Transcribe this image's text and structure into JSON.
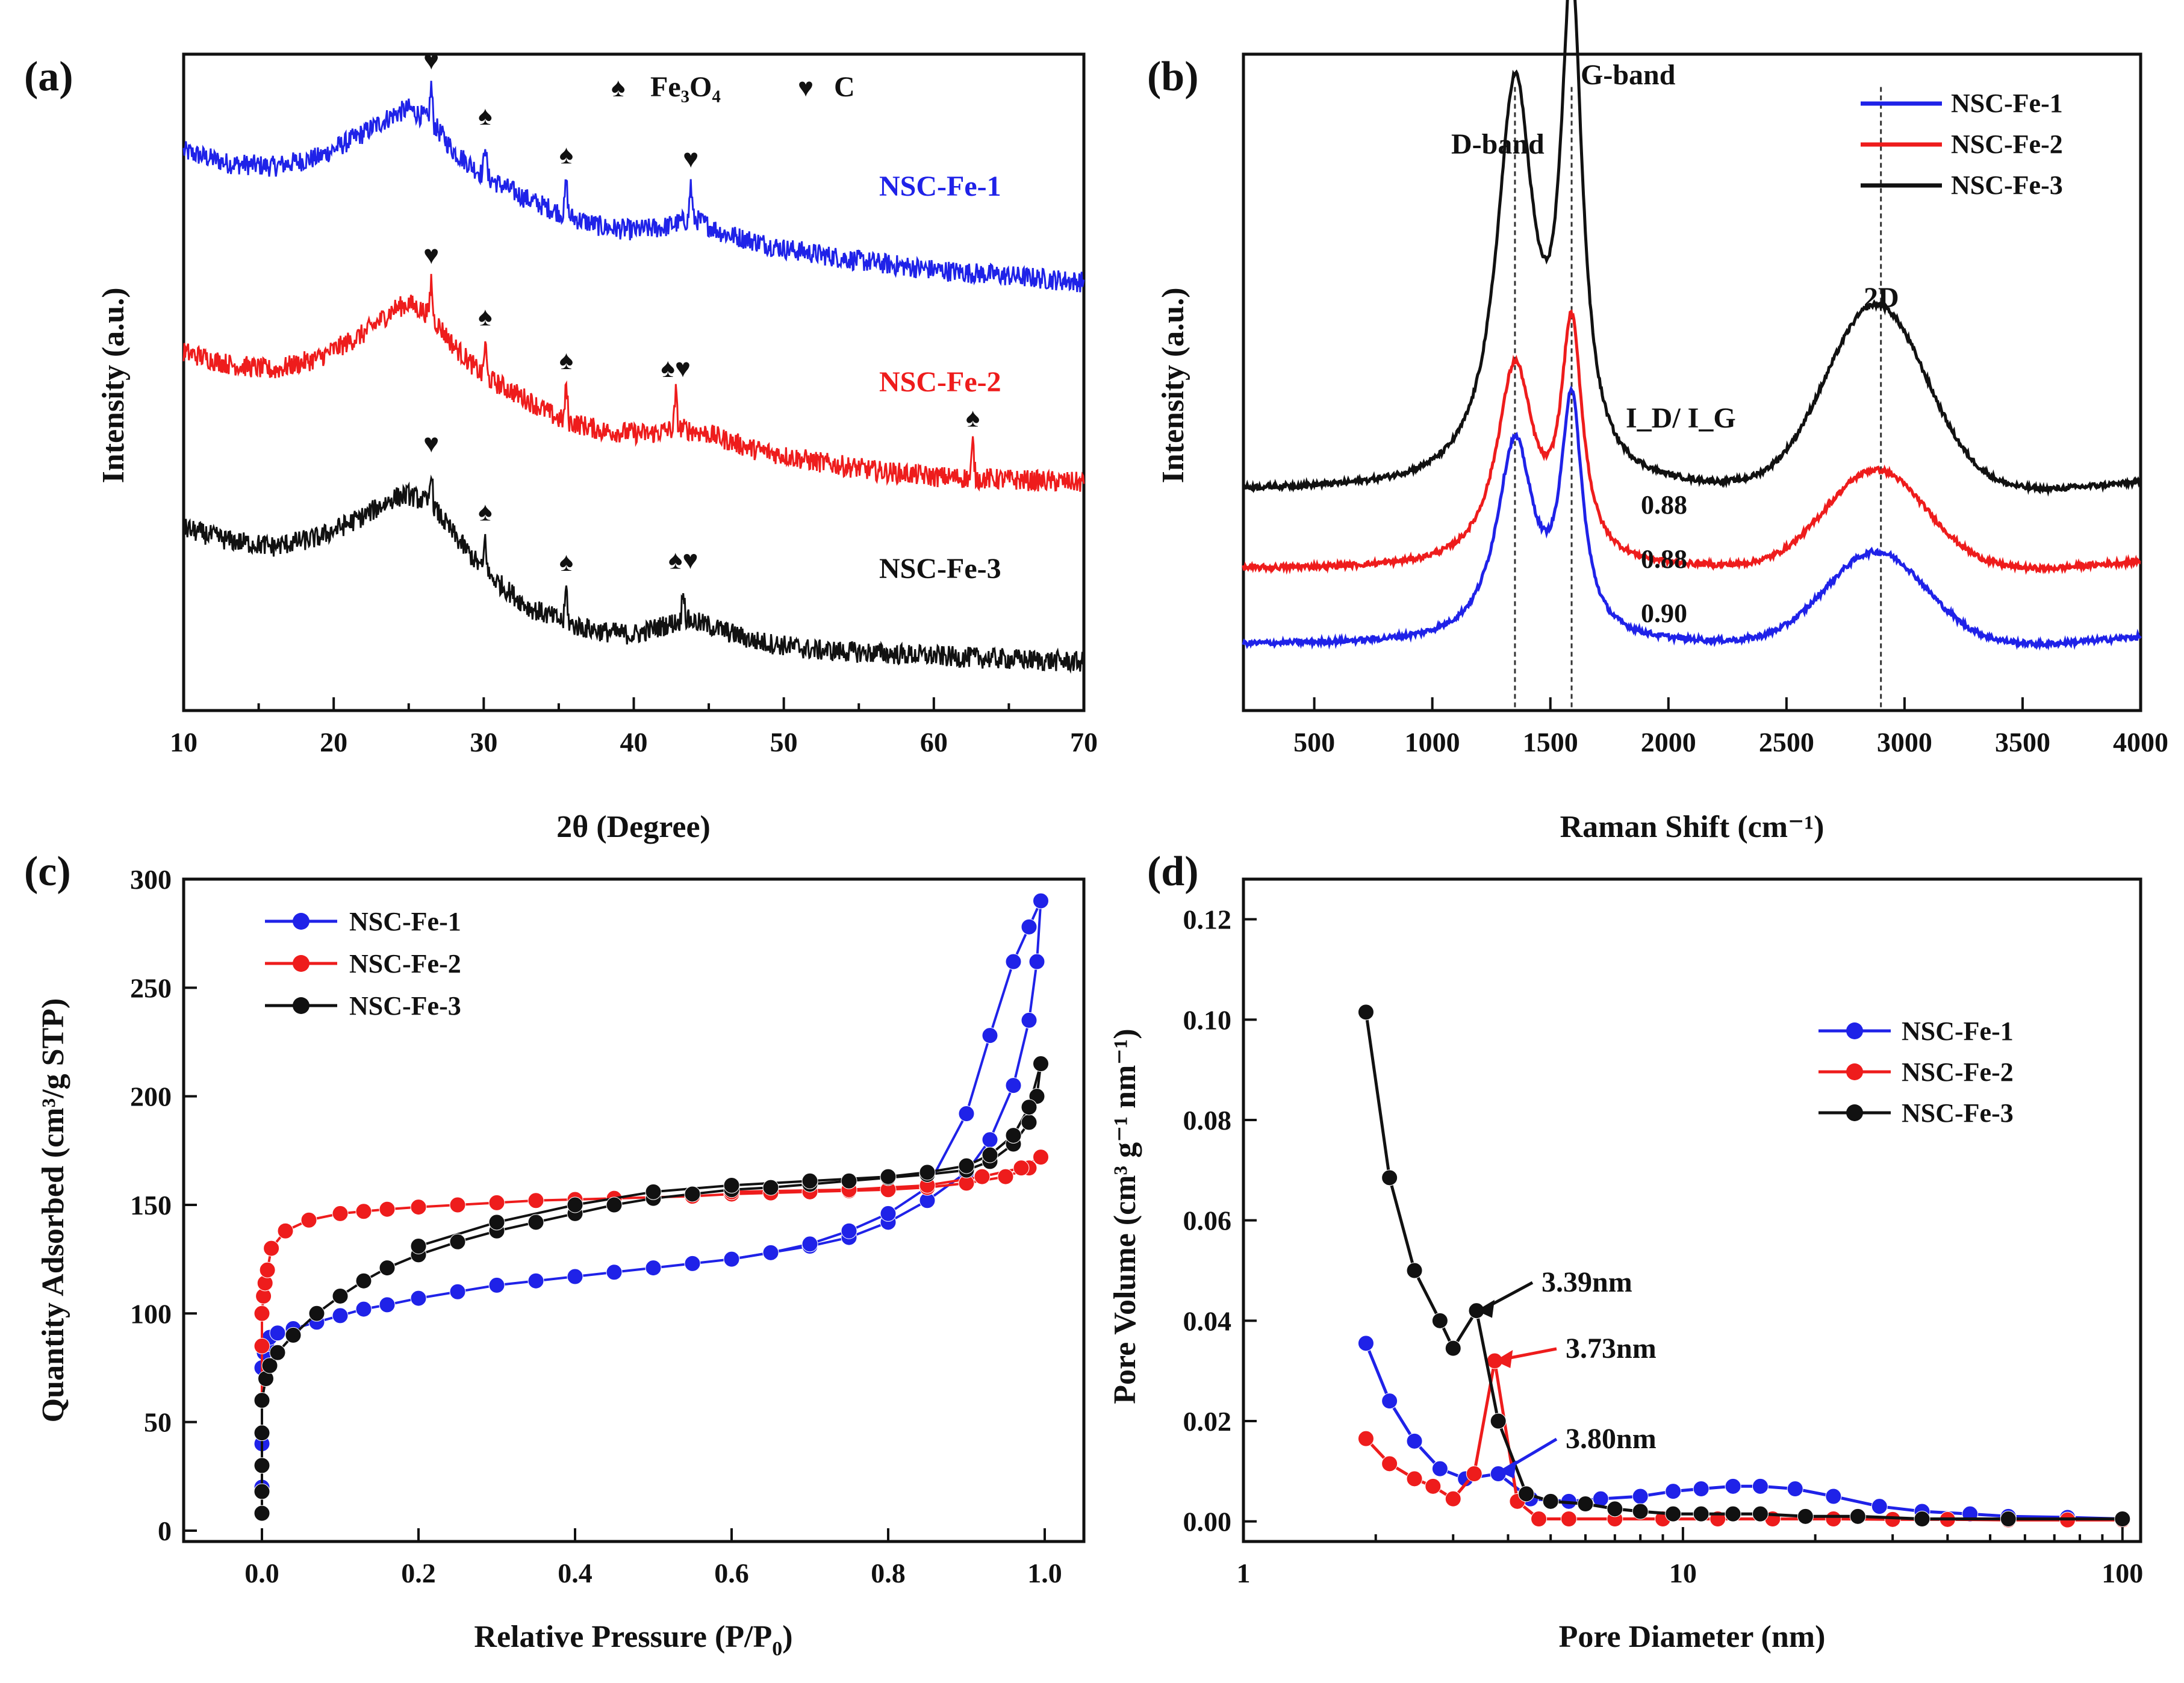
{
  "colors": {
    "blue": "#1f22e8",
    "red": "#ee1c1c",
    "black": "#111111"
  },
  "chart_data": [
    {
      "panel": "(a)",
      "type": "line",
      "xlabel": "2θ (Degree)",
      "ylabel": "Intensity (a.u.)",
      "xlim": [
        10,
        70
      ],
      "xticks": [
        "10",
        "20",
        "30",
        "40",
        "50",
        "60",
        "70"
      ],
      "legend": [
        {
          "symbol": "♠",
          "label": "Fe₃O₄"
        },
        {
          "symbol": "♥",
          "label": "C"
        }
      ],
      "series": [
        {
          "name": "NSC-Fe-1",
          "color": "#1f22e8",
          "x": [
            10,
            13,
            16,
            19,
            22,
            24,
            25,
            26.5,
            28,
            30,
            33,
            36,
            38,
            40,
            42,
            44,
            46,
            50,
            55,
            60,
            65,
            70
          ],
          "y": [
            0.88,
            0.86,
            0.855,
            0.87,
            0.91,
            0.94,
            0.95,
            0.93,
            0.88,
            0.84,
            0.8,
            0.77,
            0.755,
            0.75,
            0.755,
            0.77,
            0.745,
            0.72,
            0.7,
            0.685,
            0.675,
            0.665
          ],
          "markers": [
            {
              "x": 26.5,
              "sym": "♥"
            },
            {
              "x": 30.1,
              "sym": "♠"
            },
            {
              "x": 35.5,
              "sym": "♠"
            },
            {
              "x": 43.8,
              "sym": "♥"
            }
          ]
        },
        {
          "name": "NSC-Fe-2",
          "color": "#ee1c1c",
          "x": [
            10,
            13,
            16,
            19,
            22,
            24,
            25,
            26.5,
            28,
            30,
            33,
            35,
            38,
            41,
            43,
            45,
            48,
            52,
            56,
            60,
            65,
            70
          ],
          "y": [
            0.55,
            0.53,
            0.52,
            0.54,
            0.58,
            0.62,
            0.63,
            0.61,
            0.56,
            0.51,
            0.47,
            0.44,
            0.42,
            0.415,
            0.425,
            0.415,
            0.39,
            0.37,
            0.355,
            0.345,
            0.34,
            0.335
          ],
          "markers": [
            {
              "x": 26.5,
              "sym": "♥"
            },
            {
              "x": 30.1,
              "sym": "♠"
            },
            {
              "x": 35.5,
              "sym": "♠"
            },
            {
              "x": 42.8,
              "sym": "♠♥"
            },
            {
              "x": 62.6,
              "sym": "♠"
            }
          ]
        },
        {
          "name": "NSC-Fe-3",
          "color": "#111111",
          "x": [
            10,
            13,
            16,
            19,
            22,
            24,
            25,
            26.5,
            28,
            30,
            33,
            36,
            38,
            40,
            42,
            43.5,
            45,
            48,
            52,
            56,
            60,
            65,
            70
          ],
          "y": [
            0.26,
            0.24,
            0.23,
            0.245,
            0.28,
            0.31,
            0.315,
            0.3,
            0.25,
            0.19,
            0.13,
            0.1,
            0.09,
            0.085,
            0.1,
            0.11,
            0.1,
            0.075,
            0.06,
            0.055,
            0.05,
            0.045,
            0.04
          ],
          "markers": [
            {
              "x": 26.5,
              "sym": "♥"
            },
            {
              "x": 30.1,
              "sym": "♠"
            },
            {
              "x": 35.5,
              "sym": "♠"
            },
            {
              "x": 43.3,
              "sym": "♠♥"
            }
          ]
        }
      ]
    },
    {
      "panel": "(b)",
      "type": "line",
      "xlabel": "Raman Shift (cm⁻¹)",
      "ylabel": "Intensity (a.u.)",
      "xlim": [
        200,
        4000
      ],
      "xticks": [
        "500",
        "1000",
        "1500",
        "2000",
        "2500",
        "3000",
        "3500",
        "4000"
      ],
      "annotations": {
        "d_band": "D-band",
        "g_band": "G-band",
        "two_d": "2D",
        "ratio_title": "I_D/ I_G"
      },
      "vlines": [
        1350,
        1590,
        2900
      ],
      "series": [
        {
          "name": "NSC-Fe-1",
          "color": "#1f22e8",
          "idig": "0.90",
          "base": 0.1,
          "d": 0.3,
          "g": 0.35,
          "two_d_height": 0.14
        },
        {
          "name": "NSC-Fe-2",
          "color": "#ee1c1c",
          "idig": "0.88",
          "base": 0.215,
          "d": 0.3,
          "g": 0.35,
          "two_d_height": 0.15
        },
        {
          "name": "NSC-Fe-3",
          "color": "#111111",
          "idig": "0.88",
          "base": 0.335,
          "d": 0.6,
          "g": 0.72,
          "two_d_height": 0.28
        }
      ]
    },
    {
      "panel": "(c)",
      "type": "scatter",
      "xlabel": "Relative Pressure (P/P",
      "xlabel_sub": "0",
      "xlabel_end": ")",
      "ylabel": "Quantity Adsorbed (cm³/g STP)",
      "xlim": [
        -0.1,
        1.05
      ],
      "ylim": [
        -5,
        300
      ],
      "xticks": [
        "0.0",
        "0.2",
        "0.4",
        "0.6",
        "0.8",
        "1.0"
      ],
      "yticks": [
        "0",
        "50",
        "100",
        "150",
        "200",
        "250",
        "300"
      ],
      "series": [
        {
          "name": "NSC-Fe-1",
          "color": "#1f22e8",
          "x": [
            0.0,
            0.0,
            0.0,
            0.0,
            0.0,
            0.003,
            0.006,
            0.01,
            0.02,
            0.04,
            0.07,
            0.1,
            0.13,
            0.16,
            0.2,
            0.25,
            0.3,
            0.35,
            0.4,
            0.45,
            0.5,
            0.55,
            0.6,
            0.65,
            0.7,
            0.75,
            0.8,
            0.85,
            0.9,
            0.93,
            0.96,
            0.98,
            0.99,
            0.995
          ],
          "y": [
            8,
            20,
            40,
            60,
            75,
            82,
            86,
            89,
            91,
            93,
            96,
            99,
            102,
            104,
            107,
            110,
            113,
            115,
            117,
            119,
            121,
            123,
            125,
            128,
            131,
            135,
            142,
            152,
            165,
            180,
            205,
            235,
            262,
            290
          ],
          "desorption_x": [
            0.995,
            0.98,
            0.96,
            0.93,
            0.9,
            0.85,
            0.8,
            0.75,
            0.7,
            0.65,
            0.6
          ],
          "desorption_y": [
            290,
            278,
            262,
            228,
            192,
            158,
            146,
            138,
            132,
            128,
            125
          ]
        },
        {
          "name": "NSC-Fe-2",
          "color": "#ee1c1c",
          "x": [
            0.0,
            0.0,
            0.0,
            0.0,
            0.0,
            0.002,
            0.004,
            0.007,
            0.012,
            0.03,
            0.06,
            0.1,
            0.13,
            0.16,
            0.2,
            0.25,
            0.3,
            0.35,
            0.4,
            0.45,
            0.5,
            0.55,
            0.6,
            0.65,
            0.7,
            0.75,
            0.8,
            0.85,
            0.9,
            0.95,
            0.98,
            0.995
          ],
          "y": [
            8,
            30,
            60,
            85,
            100,
            108,
            114,
            120,
            130,
            138,
            143,
            146,
            147,
            148,
            149,
            150,
            151,
            152,
            152.5,
            153,
            153.5,
            154,
            155,
            155.5,
            156,
            156.5,
            157,
            158,
            160,
            163,
            167,
            172
          ],
          "desorption_x": [
            0.995,
            0.97,
            0.92,
            0.85,
            0.75,
            0.6
          ],
          "desorption_y": [
            172,
            167,
            163,
            159,
            157,
            156
          ]
        },
        {
          "name": "NSC-Fe-3",
          "color": "#111111",
          "x": [
            0.0,
            0.0,
            0.0,
            0.0,
            0.0,
            0.005,
            0.01,
            0.02,
            0.04,
            0.07,
            0.1,
            0.13,
            0.16,
            0.2,
            0.25,
            0.3,
            0.35,
            0.4,
            0.45,
            0.5,
            0.55,
            0.6,
            0.65,
            0.7,
            0.75,
            0.8,
            0.85,
            0.9,
            0.93,
            0.96,
            0.98,
            0.99,
            0.995
          ],
          "y": [
            8,
            18,
            30,
            45,
            60,
            70,
            76,
            82,
            90,
            100,
            108,
            115,
            121,
            127,
            133,
            138,
            142,
            146,
            150,
            153,
            155,
            157,
            158,
            159.5,
            161,
            162.5,
            164,
            166,
            170,
            178,
            188,
            200,
            215
          ],
          "desorption_x": [
            0.995,
            0.98,
            0.96,
            0.93,
            0.9,
            0.85,
            0.8,
            0.7,
            0.6,
            0.5,
            0.4,
            0.3,
            0.2
          ],
          "desorption_y": [
            215,
            195,
            182,
            173,
            168,
            165,
            163,
            161,
            159,
            156,
            150,
            142,
            131
          ]
        }
      ]
    },
    {
      "panel": "(d)",
      "type": "scatter",
      "xscale": "log",
      "xlabel": "Pore Diameter (nm)",
      "ylabel": "Pore Volume (cm³ g⁻¹ nm⁻¹)",
      "xlim": [
        1,
        110
      ],
      "ylim": [
        -0.004,
        0.128
      ],
      "xticks": [
        "1",
        "10",
        "100"
      ],
      "yticks": [
        "0.00",
        "0.02",
        "0.04",
        "0.06",
        "0.08",
        "0.10",
        "0.12"
      ],
      "annotations": [
        {
          "text": "3.39nm",
          "color": "#111111",
          "x": 3.39,
          "y": 0.042
        },
        {
          "text": "3.73nm",
          "color": "#ee1c1c",
          "x": 3.73,
          "y": 0.032
        },
        {
          "text": "3.80nm",
          "color": "#1f22e8",
          "x": 3.8,
          "y": 0.01
        }
      ],
      "series": [
        {
          "name": "NSC-Fe-1",
          "color": "#1f22e8",
          "x": [
            1.9,
            2.15,
            2.45,
            2.8,
            3.2,
            3.8,
            4.5,
            5.5,
            6.5,
            8,
            9.5,
            11,
            13,
            15,
            18,
            22,
            28,
            35,
            45,
            55,
            75,
            100
          ],
          "y": [
            0.0355,
            0.024,
            0.016,
            0.0105,
            0.0085,
            0.0095,
            0.0045,
            0.004,
            0.0045,
            0.005,
            0.006,
            0.0065,
            0.007,
            0.007,
            0.0065,
            0.005,
            0.003,
            0.002,
            0.0015,
            0.001,
            0.0008,
            0.0005
          ]
        },
        {
          "name": "NSC-Fe-2",
          "color": "#ee1c1c",
          "x": [
            1.9,
            2.15,
            2.45,
            2.7,
            3.0,
            3.35,
            3.73,
            4.2,
            4.7,
            5.5,
            7,
            9,
            12,
            16,
            22,
            30,
            40,
            55,
            75,
            100
          ],
          "y": [
            0.0165,
            0.0115,
            0.0085,
            0.007,
            0.0045,
            0.0095,
            0.032,
            0.004,
            0.0005,
            0.0005,
            0.0005,
            0.0005,
            0.0005,
            0.0005,
            0.0005,
            0.0004,
            0.0004,
            0.0003,
            0.0003,
            0.0003
          ]
        },
        {
          "name": "NSC-Fe-3",
          "color": "#111111",
          "x": [
            1.9,
            2.15,
            2.45,
            2.8,
            3.0,
            3.39,
            3.8,
            4.4,
            5.0,
            6.0,
            7.0,
            8.0,
            9.5,
            11,
            13,
            15,
            19,
            25,
            35,
            55,
            100
          ],
          "y": [
            0.1015,
            0.0685,
            0.05,
            0.04,
            0.0345,
            0.042,
            0.02,
            0.0055,
            0.004,
            0.0035,
            0.0025,
            0.002,
            0.0015,
            0.0015,
            0.0015,
            0.0015,
            0.001,
            0.001,
            0.0005,
            0.0005,
            0.0005
          ]
        }
      ]
    }
  ]
}
